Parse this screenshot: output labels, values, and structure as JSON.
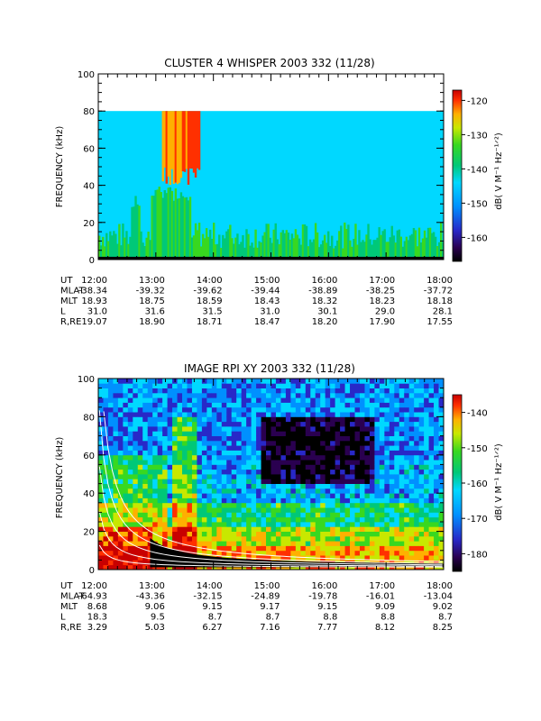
{
  "chart_data": [
    {
      "type": "heatmap",
      "title": "CLUSTER 4 WHISPER 2003 332 (11/28)",
      "ylabel": "FREQUENCY (kHz)",
      "ylim": [
        0,
        100
      ],
      "y_ticks": [
        "0",
        "20",
        "40",
        "60",
        "80",
        "100"
      ],
      "x_ticks": [
        "12:00",
        "13:00",
        "14:00",
        "15:00",
        "16:00",
        "17:00",
        "18:00"
      ],
      "colorbar": {
        "label": "dB( V M⁻¹ Hz⁻¹ᐟ²)",
        "range": [
          -167,
          -117
        ],
        "ticks": [
          "-120",
          "-130",
          "-140",
          "-150",
          "-160"
        ]
      },
      "ephemeris_labels": [
        "UT",
        "MLAT",
        "MLT",
        "L",
        "R,RE"
      ],
      "ephemeris": [
        [
          "12:00",
          "-38.34",
          "18.93",
          "31.0",
          "19.07"
        ],
        [
          "13:00",
          "-39.32",
          "18.75",
          "31.6",
          "18.90"
        ],
        [
          "14:00",
          "-39.62",
          "18.59",
          "31.5",
          "18.71"
        ],
        [
          "15:00",
          "-39.44",
          "18.43",
          "31.0",
          "18.47"
        ],
        [
          "16:00",
          "-38.89",
          "18.32",
          "30.1",
          "18.20"
        ],
        [
          "17:00",
          "-38.25",
          "18.23",
          "29.0",
          "17.90"
        ],
        [
          "18:00",
          "-37.72",
          "18.18",
          "28.1",
          "17.55"
        ]
      ]
    },
    {
      "type": "heatmap",
      "title": "IMAGE RPI XY 2003 332 (11/28)",
      "ylabel": "FREQUENCY (kHz)",
      "ylim": [
        0,
        100
      ],
      "y_ticks": [
        "0",
        "20",
        "40",
        "60",
        "80",
        "100"
      ],
      "x_ticks": [
        "12:00",
        "13:00",
        "14:00",
        "15:00",
        "16:00",
        "17:00",
        "18:00"
      ],
      "colorbar": {
        "label": "dB( V M⁻¹ Hz⁻¹ᐟ²)",
        "range": [
          -185,
          -135
        ],
        "ticks": [
          "-140",
          "-150",
          "-160",
          "-170",
          "-180"
        ]
      },
      "ephemeris_labels": [
        "UT",
        "MLAT",
        "MLT",
        "L",
        "R,RE"
      ],
      "ephemeris": [
        [
          "12:00",
          "-64.93",
          "8.68",
          "18.3",
          "3.29"
        ],
        [
          "13:00",
          "-43.36",
          "9.06",
          "9.5",
          "5.03"
        ],
        [
          "14:00",
          "-32.15",
          "9.15",
          "8.7",
          "6.27"
        ],
        [
          "15:00",
          "-24.89",
          "9.17",
          "8.7",
          "7.16"
        ],
        [
          "16:00",
          "-19.78",
          "9.15",
          "8.8",
          "7.77"
        ],
        [
          "17:00",
          "-16.01",
          "9.09",
          "8.8",
          "8.12"
        ],
        [
          "18:00",
          "-13.04",
          "9.02",
          "8.7",
          "8.25"
        ]
      ]
    }
  ]
}
